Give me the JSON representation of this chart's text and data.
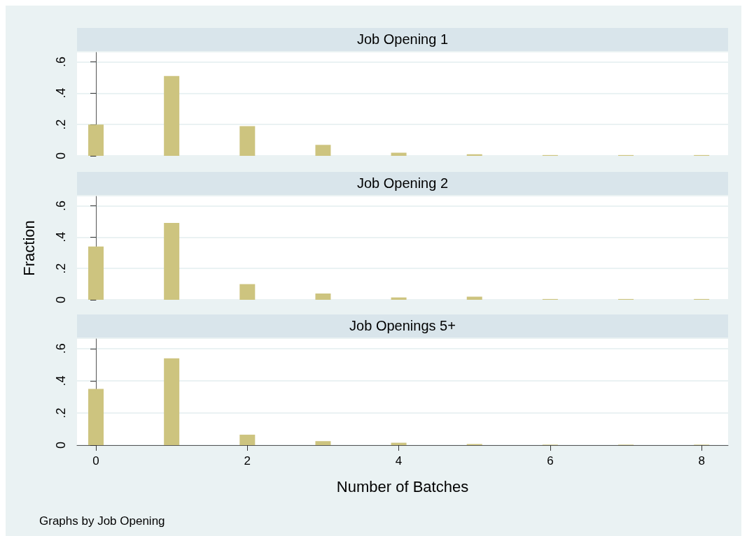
{
  "chart_data": [
    {
      "type": "bar",
      "title": "Job Opening 1",
      "x": [
        0,
        1,
        2,
        3,
        4,
        5,
        6,
        7,
        8
      ],
      "color": "#cdc47f",
      "values": [
        0.2,
        0.51,
        0.19,
        0.07,
        0.02,
        0.01,
        0.005,
        0.005,
        0.005
      ],
      "xlim": [
        -0.25,
        8.35
      ],
      "ylim": [
        0,
        0.66
      ],
      "yticks": [
        {
          "value": 0,
          "label": "0"
        },
        {
          "value": 0.2,
          "label": ".2"
        },
        {
          "value": 0.4,
          "label": ".4"
        },
        {
          "value": 0.6,
          "label": ".6"
        }
      ],
      "grid": "y",
      "tick_labels": "y"
    },
    {
      "type": "bar",
      "title": "Job Opening 2",
      "ylabel": "Fraction",
      "x": [
        0,
        1,
        2,
        3,
        4,
        5,
        6,
        7,
        8
      ],
      "color": "#cdc47f",
      "values": [
        0.34,
        0.49,
        0.1,
        0.04,
        0.015,
        0.02,
        0.005,
        0.005,
        0.005
      ],
      "xlim": [
        -0.25,
        8.35
      ],
      "ylim": [
        0,
        0.66
      ],
      "yticks": [
        {
          "value": 0,
          "label": "0"
        },
        {
          "value": 0.2,
          "label": ".2"
        },
        {
          "value": 0.4,
          "label": ".4"
        },
        {
          "value": 0.6,
          "label": ".6"
        }
      ],
      "grid": "y",
      "tick_labels": "y"
    },
    {
      "type": "bar",
      "title": "Job Openings 5+",
      "xlabel": "Number of Batches",
      "x": [
        0,
        1,
        2,
        3,
        4,
        5,
        6,
        7,
        8
      ],
      "color": "#cdc47f",
      "values": [
        0.35,
        0.54,
        0.065,
        0.025,
        0.015,
        0.007,
        0.003,
        0.003,
        0.003
      ],
      "xlim": [
        -0.25,
        8.35
      ],
      "xticks": [
        0,
        2,
        4,
        6,
        8
      ],
      "ylim": [
        0,
        0.66
      ],
      "yticks": [
        {
          "value": 0,
          "label": "0"
        },
        {
          "value": 0.2,
          "label": ".2"
        },
        {
          "value": 0.4,
          "label": ".4"
        },
        {
          "value": 0.6,
          "label": ".6"
        }
      ],
      "grid": "y",
      "annotations": [
        "Graphs by Job Opening"
      ]
    }
  ]
}
